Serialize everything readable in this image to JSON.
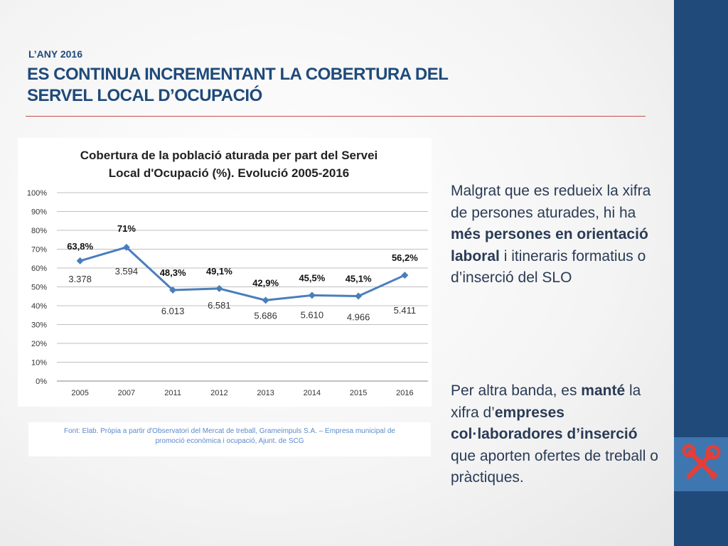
{
  "header": {
    "subtitle": "L’ANY 2016",
    "title_line1": "ES CONTINUA INCREMENTANT LA COBERTURA DEL",
    "title_line2": "SERVEL LOCAL D’OCUPACIÓ"
  },
  "chart_data": {
    "type": "line",
    "title_line1": "Cobertura de la població aturada per part del Servei",
    "title_line2": "Local d'Ocupació (%). Evolució 2005-2016",
    "categories": [
      "2005",
      "2007",
      "2011",
      "2012",
      "2013",
      "2014",
      "2015",
      "2016"
    ],
    "values": [
      63.8,
      71,
      48.3,
      49.1,
      42.9,
      45.5,
      45.1,
      56.2
    ],
    "value_labels": [
      "63,8%",
      "71%",
      "48,3%",
      "49,1%",
      "42,9%",
      "45,5%",
      "45,1%",
      "56,2%"
    ],
    "secondary_labels": [
      "3.378",
      "3.594",
      "6.013",
      "6.581",
      "5.686",
      "5.610",
      "4.966",
      "5.411"
    ],
    "y_ticks": [
      "0%",
      "10%",
      "20%",
      "30%",
      "40%",
      "50%",
      "60%",
      "70%",
      "80%",
      "90%",
      "100%"
    ],
    "ylim": [
      0,
      100
    ],
    "grid": true,
    "line_color": "#4a7ebb"
  },
  "source": {
    "line1": "Font: Elab. Pròpia a partir d'Observatori del Mercat de treball, Grameimpuls S.A. – Empresa municipal de",
    "line2": "promoció econòmica i ocupació, Ajunt. de SCG"
  },
  "text": {
    "p1_a": "Malgrat que es redueix la xifra de persones aturades, hi ha ",
    "p1_b": "més persones en orientació laboral",
    "p1_c": " i itineraris formatius o d’inserció del SLO",
    "p2_a": "Per altra banda, es ",
    "p2_b": "manté",
    "p2_c": " la xifra d’",
    "p2_d": "empreses col·laboradores d’inserció",
    "p2_e": " que aporten ofertes de treball o pràctiques."
  },
  "icons": {
    "tools": "tools-icon"
  },
  "colors": {
    "accent_blue": "#1f4a7a",
    "rule_red": "#c0504d",
    "icon_red": "#e0403a"
  }
}
